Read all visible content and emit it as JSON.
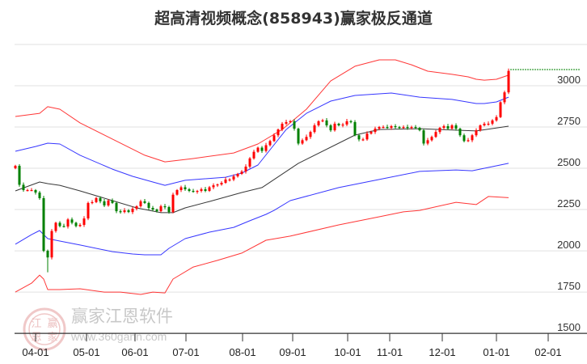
{
  "chart_data": {
    "type": "candlestick",
    "title": "超高清视频概念(858943)赢家极反通道",
    "xlabel": "",
    "ylabel": "",
    "ylim": [
      1500,
      3250
    ],
    "yticks": [
      1500,
      1750,
      2000,
      2250,
      2500,
      2750,
      3000
    ],
    "grid": true,
    "xticks": [
      {
        "label": "04-01",
        "index": 5
      },
      {
        "label": "05-01",
        "index": 17.6
      },
      {
        "label": "06-01",
        "index": 29.6
      },
      {
        "label": "07-01",
        "index": 42.2
      },
      {
        "label": "08-01",
        "index": 56.2
      },
      {
        "label": "09-01",
        "index": 68.6
      },
      {
        "label": "10-01",
        "index": 82.2
      },
      {
        "label": "11-01",
        "index": 92.6
      },
      {
        "label": "12-01",
        "index": 105.6
      },
      {
        "label": "01-01",
        "index": 119
      },
      {
        "label": "02-01",
        "index": 131.8
      }
    ],
    "xrange": [
      -0.2,
      140.5
    ],
    "first_open": 2500,
    "closes": [
      2515,
      2400,
      2368,
      2368,
      2368,
      2353,
      2319,
      2000,
      1960,
      2120,
      2170,
      2150,
      2147,
      2190,
      2170,
      2150,
      2157,
      2196,
      2290,
      2295,
      2320,
      2300,
      2275,
      2305,
      2290,
      2240,
      2235,
      2245,
      2235,
      2255,
      2270,
      2300,
      2290,
      2260,
      2250,
      2240,
      2270,
      2265,
      2235,
      2340,
      2368,
      2385,
      2373,
      2363,
      2358,
      2363,
      2373,
      2363,
      2385,
      2397,
      2402,
      2412,
      2432,
      2432,
      2451,
      2466,
      2480,
      2510,
      2560,
      2600,
      2625,
      2605,
      2640,
      2665,
      2700,
      2735,
      2770,
      2780,
      2785,
      2740,
      2650,
      2670,
      2690,
      2720,
      2760,
      2785,
      2790,
      2760,
      2730,
      2770,
      2760,
      2765,
      2785,
      2780,
      2700,
      2675,
      2675,
      2710,
      2720,
      2740,
      2750,
      2750,
      2745,
      2755,
      2750,
      2745,
      2750,
      2745,
      2750,
      2745,
      2730,
      2650,
      2670,
      2690,
      2720,
      2745,
      2755,
      2740,
      2760,
      2740,
      2700,
      2665,
      2670,
      2700,
      2730,
      2760,
      2770,
      2770,
      2790,
      2810,
      2900,
      2960,
      3090
    ],
    "low_overrides": [
      {
        "index": 8,
        "low": 1870
      }
    ],
    "last_price": 3098,
    "colors": {
      "up": "#ff0000",
      "down": "#008000",
      "upper_outer": "#ff2020",
      "upper_inner": "#2020ff",
      "mid": "#222222",
      "lower_inner": "#2020ff",
      "lower_outer": "#ff2020",
      "last_price": "#008000"
    },
    "bands": [
      {
        "name": "upper_outer",
        "points": [
          [
            0,
            2814
          ],
          [
            6,
            2833
          ],
          [
            8,
            2873
          ],
          [
            11,
            2858
          ],
          [
            16,
            2775
          ],
          [
            24,
            2677
          ],
          [
            32,
            2579
          ],
          [
            37,
            2539
          ],
          [
            44,
            2559
          ],
          [
            54,
            2593
          ],
          [
            60,
            2647
          ],
          [
            66,
            2735
          ],
          [
            72,
            2858
          ],
          [
            78,
            3029
          ],
          [
            84,
            3118
          ],
          [
            90,
            3157
          ],
          [
            94,
            3157
          ],
          [
            98,
            3127
          ],
          [
            102,
            3088
          ],
          [
            108,
            3069
          ],
          [
            112,
            3054
          ],
          [
            114,
            3039
          ],
          [
            116,
            3034
          ],
          [
            119,
            3039
          ],
          [
            122,
            3064
          ]
        ]
      },
      {
        "name": "upper_inner",
        "points": [
          [
            0,
            2603
          ],
          [
            5,
            2632
          ],
          [
            8,
            2652
          ],
          [
            11,
            2647
          ],
          [
            16,
            2579
          ],
          [
            24,
            2495
          ],
          [
            29,
            2451
          ],
          [
            34,
            2417
          ],
          [
            37,
            2397
          ],
          [
            42,
            2427
          ],
          [
            52,
            2446
          ],
          [
            56,
            2471
          ],
          [
            60,
            2520
          ],
          [
            67,
            2735
          ],
          [
            72,
            2833
          ],
          [
            78,
            2907
          ],
          [
            84,
            2941
          ],
          [
            93,
            2956
          ],
          [
            100,
            2931
          ],
          [
            108,
            2917
          ],
          [
            114,
            2892
          ],
          [
            116,
            2892
          ],
          [
            119,
            2902
          ],
          [
            122,
            2931
          ]
        ]
      },
      {
        "name": "mid",
        "points": [
          [
            0,
            2363
          ],
          [
            6,
            2417
          ],
          [
            8,
            2407
          ],
          [
            11,
            2397
          ],
          [
            16,
            2363
          ],
          [
            24,
            2304
          ],
          [
            30,
            2260
          ],
          [
            36,
            2231
          ],
          [
            39,
            2231
          ],
          [
            42,
            2260
          ],
          [
            48,
            2299
          ],
          [
            56,
            2353
          ],
          [
            61,
            2383
          ],
          [
            70,
            2530
          ],
          [
            84,
            2701
          ],
          [
            90,
            2735
          ],
          [
            100,
            2740
          ],
          [
            114,
            2726
          ],
          [
            122,
            2755
          ]
        ]
      },
      {
        "name": "lower_inner",
        "points": [
          [
            0,
            2040
          ],
          [
            4,
            2098
          ],
          [
            6,
            2123
          ],
          [
            8,
            2074
          ],
          [
            11,
            2059
          ],
          [
            16,
            2035
          ],
          [
            24,
            1995
          ],
          [
            29,
            1981
          ],
          [
            32,
            1976
          ],
          [
            36,
            1976
          ],
          [
            38,
            2015
          ],
          [
            42,
            2074
          ],
          [
            48,
            2113
          ],
          [
            54,
            2142
          ],
          [
            58,
            2182
          ],
          [
            62,
            2221
          ],
          [
            64,
            2245
          ],
          [
            68,
            2304
          ],
          [
            80,
            2383
          ],
          [
            90,
            2432
          ],
          [
            100,
            2481
          ],
          [
            109,
            2490
          ],
          [
            113,
            2485
          ],
          [
            122,
            2530
          ]
        ]
      },
      {
        "name": "lower_outer",
        "points": [
          [
            0,
            1750
          ],
          [
            4,
            1804
          ],
          [
            6,
            1853
          ],
          [
            7,
            1829
          ],
          [
            8,
            1765
          ],
          [
            11,
            1765
          ],
          [
            16,
            1770
          ],
          [
            22,
            1750
          ],
          [
            26,
            1750
          ],
          [
            31,
            1736
          ],
          [
            34,
            1750
          ],
          [
            37,
            1745
          ],
          [
            39,
            1829
          ],
          [
            44,
            1902
          ],
          [
            50,
            1942
          ],
          [
            56,
            1986
          ],
          [
            62,
            2064
          ],
          [
            68,
            2089
          ],
          [
            80,
            2157
          ],
          [
            90,
            2206
          ],
          [
            96,
            2236
          ],
          [
            100,
            2245
          ],
          [
            109,
            2294
          ],
          [
            114,
            2280
          ],
          [
            117,
            2329
          ],
          [
            122,
            2322
          ]
        ]
      }
    ]
  },
  "watermark": {
    "logo_chars": [
      "江",
      "赢",
      "恩",
      "家"
    ],
    "name": "赢家江恩软件",
    "url": "www.360gann.com"
  }
}
